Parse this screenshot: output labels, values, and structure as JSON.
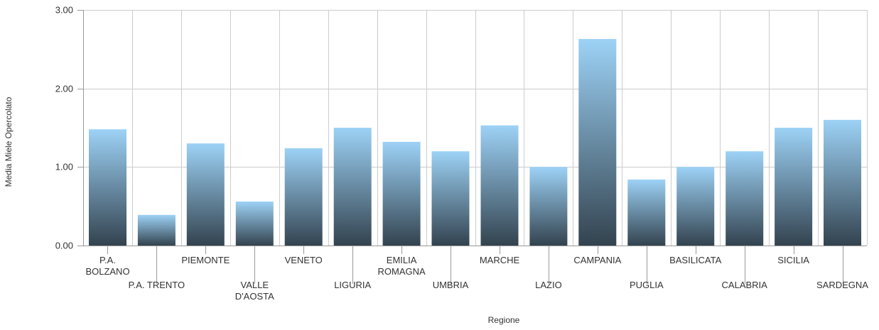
{
  "chart_data": {
    "type": "bar",
    "title": "",
    "xlabel": "Regione",
    "ylabel": "Media Miele Opercolato",
    "ylim": [
      0,
      3
    ],
    "yticks": [
      "0.00",
      "1.00",
      "2.00",
      "3.00"
    ],
    "ytick_values": [
      0,
      1,
      2,
      3
    ],
    "grid": true,
    "categories": [
      [
        "P.A.",
        "BOLZANO"
      ],
      [
        "P.A. TRENTO"
      ],
      [
        "PIEMONTE"
      ],
      [
        "VALLE",
        "D'AOSTA"
      ],
      [
        "VENETO"
      ],
      [
        "LIGURIA"
      ],
      [
        "EMILIA",
        "ROMAGNA"
      ],
      [
        "UMBRIA"
      ],
      [
        "MARCHE"
      ],
      [
        "LAZIO"
      ],
      [
        "CAMPANIA"
      ],
      [
        "PUGLIA"
      ],
      [
        "BASILICATA"
      ],
      [
        "CALABRIA"
      ],
      [
        "SICILIA"
      ],
      [
        "SARDEGNA"
      ]
    ],
    "values": [
      1.48,
      0.39,
      1.3,
      0.56,
      1.24,
      1.5,
      1.32,
      1.2,
      1.53,
      1.0,
      2.63,
      0.84,
      1.0,
      1.2,
      1.5,
      1.6
    ],
    "colors": {
      "bar_top": "#9dd2f6",
      "bar_bottom": "#33434f",
      "grid": "#cccccc"
    }
  }
}
